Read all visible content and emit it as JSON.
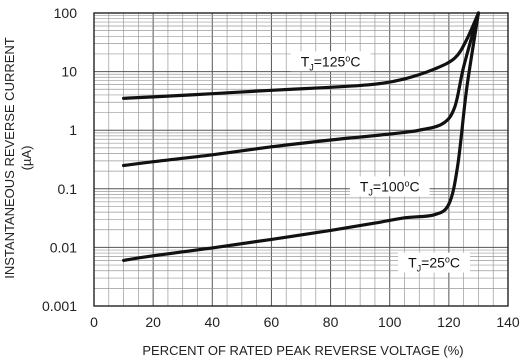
{
  "chart_data": {
    "type": "line",
    "xlabel": "PERCENT OF RATED PEAK REVERSE VOLTAGE (%)",
    "ylabel_line1": "INSTANTANEOUS REVERSE CURRENT",
    "ylabel_line2": "(µA)",
    "xlim": [
      0,
      140
    ],
    "ylim": [
      0.001,
      100
    ],
    "y_scale": "log",
    "grid": true,
    "x_ticks": [
      "0",
      "20",
      "40",
      "60",
      "80",
      "100",
      "120",
      "140"
    ],
    "x_tick_values": [
      0,
      20,
      40,
      60,
      80,
      100,
      120,
      140
    ],
    "y_ticks": [
      "0.001",
      "0.01",
      "0.1",
      "1",
      "10",
      "100"
    ],
    "y_tick_values": [
      0.001,
      0.01,
      0.1,
      1,
      10,
      100
    ],
    "series": [
      {
        "label": {
          "pre": "T",
          "sub": "J",
          "mid": "=125",
          "sup": "o",
          "post": "C"
        },
        "label_at": [
          80,
          15
        ],
        "points": [
          [
            10,
            3.5
          ],
          [
            20,
            3.7
          ],
          [
            40,
            4.2
          ],
          [
            60,
            4.8
          ],
          [
            80,
            5.4
          ],
          [
            95,
            6.1
          ],
          [
            105,
            7.5
          ],
          [
            115,
            11
          ],
          [
            122,
            17
          ],
          [
            126,
            35
          ],
          [
            130,
            100
          ]
        ]
      },
      {
        "label": {
          "pre": "T",
          "sub": "J",
          "mid": "=100",
          "sup": "o",
          "post": "C"
        },
        "label_at": [
          100,
          0.11
        ],
        "points": [
          [
            10,
            0.25
          ],
          [
            20,
            0.29
          ],
          [
            40,
            0.38
          ],
          [
            60,
            0.52
          ],
          [
            80,
            0.68
          ],
          [
            100,
            0.86
          ],
          [
            110,
            1.0
          ],
          [
            118,
            1.3
          ],
          [
            122,
            2.5
          ],
          [
            125,
            12
          ],
          [
            130,
            100
          ]
        ]
      },
      {
        "label": {
          "pre": "T",
          "sub": "J",
          "mid": "=25",
          "sup": "o",
          "post": "C"
        },
        "label_at": [
          115,
          0.0055
        ],
        "points": [
          [
            10,
            0.006
          ],
          [
            20,
            0.0072
          ],
          [
            40,
            0.0098
          ],
          [
            60,
            0.0137
          ],
          [
            80,
            0.0195
          ],
          [
            95,
            0.026
          ],
          [
            105,
            0.032
          ],
          [
            115,
            0.036
          ],
          [
            120,
            0.055
          ],
          [
            123,
            0.25
          ],
          [
            126,
            5
          ],
          [
            130,
            100
          ]
        ]
      }
    ]
  }
}
